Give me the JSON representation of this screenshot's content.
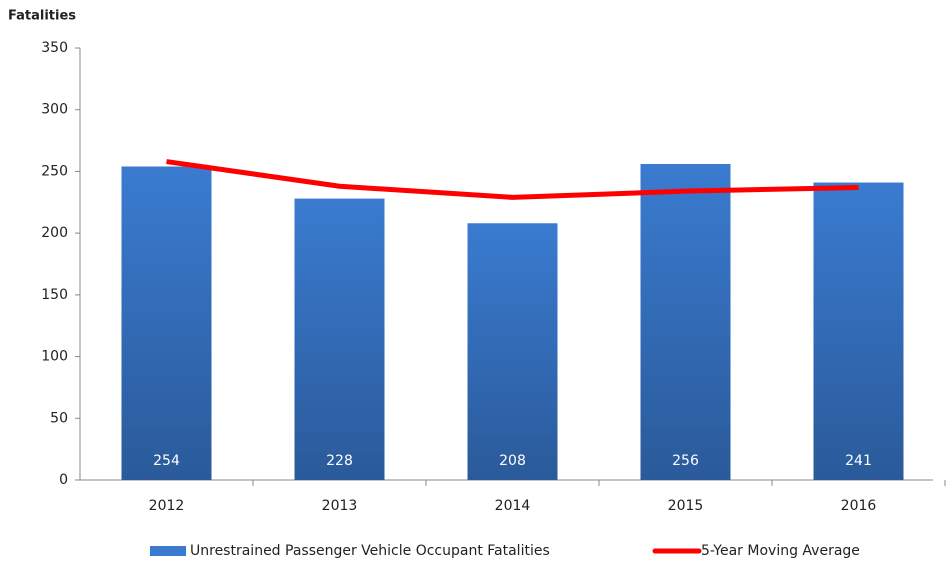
{
  "chart_data": {
    "type": "bar",
    "y_axis_label": "Fatalities",
    "categories": [
      "2012",
      "2013",
      "2014",
      "2015",
      "2016"
    ],
    "series": [
      {
        "name": "Unrestrained Passenger Vehicle Occupant Fatalities",
        "type": "bar",
        "color": "#3a7bd0",
        "values": [
          254,
          228,
          208,
          256,
          241
        ]
      },
      {
        "name": "5-Year Moving Average",
        "type": "line",
        "color": "#ff0000",
        "values": [
          258,
          238,
          229,
          234,
          237
        ]
      }
    ],
    "ylim": [
      0,
      350
    ],
    "yticks": [
      0,
      50,
      100,
      150,
      200,
      250,
      300,
      350
    ],
    "grid": false,
    "legend": "bottom"
  }
}
